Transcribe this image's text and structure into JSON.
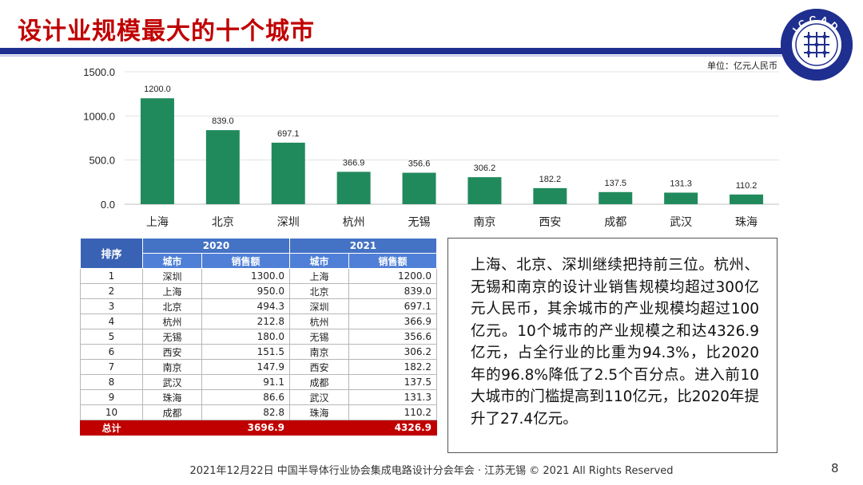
{
  "slide": {
    "title": "设计业规模最大的十个城市",
    "unit_label": "单位：亿元人民币",
    "logo_text": "ICCAD",
    "footer": "2021年12月22日 中国半导体行业协会集成电路设计分会年会 · 江苏无锡 © 2021 All Rights Reserved",
    "page_number": "8"
  },
  "colors": {
    "bar": "#218a5d",
    "title": "#c00000",
    "rule": "#1f2f8f",
    "table_header": "#4472c4",
    "total_row": "#c00000"
  },
  "chart_data": {
    "type": "bar",
    "categories": [
      "上海",
      "北京",
      "深圳",
      "杭州",
      "无锡",
      "南京",
      "西安",
      "成都",
      "武汉",
      "珠海"
    ],
    "values": [
      1200.0,
      839.0,
      697.1,
      366.9,
      356.6,
      306.2,
      182.2,
      137.5,
      131.3,
      110.2
    ],
    "value_labels": [
      "1200.0",
      "839.0",
      "697.1",
      "366.9",
      "356.6",
      "306.2",
      "182.2",
      "137.5",
      "131.3",
      "110.2"
    ],
    "yticks": [
      "0.0",
      "500.0",
      "1000.0",
      "1500.0"
    ],
    "ylim": [
      0,
      1500
    ],
    "grid": true
  },
  "table": {
    "rank_header": "排序",
    "year1": "2020",
    "year2": "2021",
    "city_header": "城市",
    "sales_header": "销售额",
    "rows": [
      {
        "rank": "1",
        "city_2020": "深圳",
        "sales_2020": "1300.0",
        "city_2021": "上海",
        "sales_2021": "1200.0"
      },
      {
        "rank": "2",
        "city_2020": "上海",
        "sales_2020": "950.0",
        "city_2021": "北京",
        "sales_2021": "839.0"
      },
      {
        "rank": "3",
        "city_2020": "北京",
        "sales_2020": "494.3",
        "city_2021": "深圳",
        "sales_2021": "697.1"
      },
      {
        "rank": "4",
        "city_2020": "杭州",
        "sales_2020": "212.8",
        "city_2021": "杭州",
        "sales_2021": "366.9"
      },
      {
        "rank": "5",
        "city_2020": "无锡",
        "sales_2020": "180.0",
        "city_2021": "无锡",
        "sales_2021": "356.6"
      },
      {
        "rank": "6",
        "city_2020": "西安",
        "sales_2020": "151.5",
        "city_2021": "南京",
        "sales_2021": "306.2"
      },
      {
        "rank": "7",
        "city_2020": "南京",
        "sales_2020": "147.9",
        "city_2021": "西安",
        "sales_2021": "182.2"
      },
      {
        "rank": "8",
        "city_2020": "武汉",
        "sales_2020": "91.1",
        "city_2021": "成都",
        "sales_2021": "137.5"
      },
      {
        "rank": "9",
        "city_2020": "珠海",
        "sales_2020": "86.6",
        "city_2021": "武汉",
        "sales_2021": "131.3"
      },
      {
        "rank": "10",
        "city_2020": "成都",
        "sales_2020": "82.8",
        "city_2021": "珠海",
        "sales_2021": "110.2"
      }
    ],
    "total_label": "总计",
    "total_2020": "3696.9",
    "total_2021": "4326.9"
  },
  "summary_text": "上海、北京、深圳继续把持前三位。杭州、无锡和南京的设计业销售规模均超过300亿元人民币，其余城市的产业规模均超过100亿元。10个城市的产业规模之和达4326.9亿元，占全行业的比重为94.3%，比2020年的96.8%降低了2.5个百分点。进入前10大城市的门槛提高到110亿元，比2020年提升了27.4亿元。"
}
